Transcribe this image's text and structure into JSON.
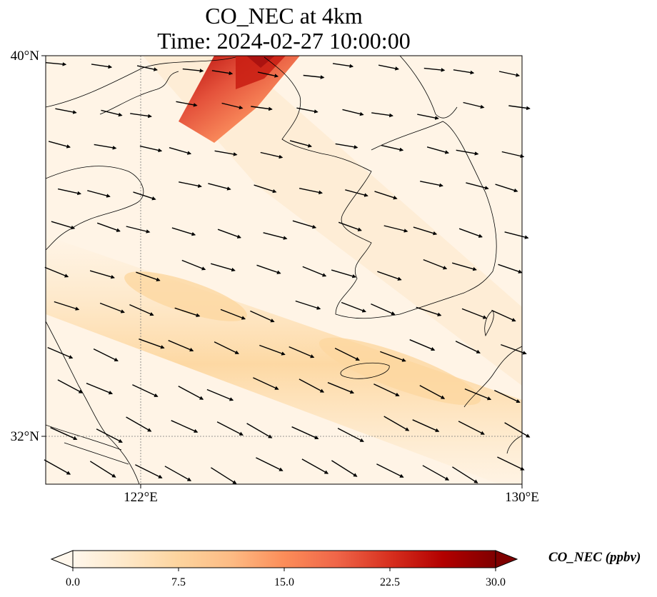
{
  "title_line1": "CO_NEC at 4km",
  "title_line2": "Time: 2024-02-27 10:00:00",
  "axes": {
    "lat_ticks": [
      "40°N",
      "32°N"
    ],
    "lon_ticks": [
      "122°E",
      "130°E"
    ],
    "lat_range": [
      31,
      40
    ],
    "lon_range": [
      120,
      130
    ],
    "gridlines": "dotted"
  },
  "colorbar": {
    "label": "CO_NEC (ppbv)",
    "ticks": [
      "0.0",
      "7.5",
      "15.0",
      "22.5",
      "30.0"
    ],
    "range": [
      0,
      30
    ],
    "extend": "both",
    "colormap": "OrRd",
    "colors": [
      "#fff7ec",
      "#fee8c8",
      "#fdd49e",
      "#fdbb84",
      "#fc8d59",
      "#ef6548",
      "#d7301f",
      "#b30000",
      "#7f0000"
    ]
  },
  "field": {
    "background_ppbv": 3,
    "plume_north_peak_ppbv": 20,
    "band_peak_ppbv": 8,
    "wind_vectors": "mostly westerly to west-northwesterly, stronger over the sea south of 34°N"
  }
}
